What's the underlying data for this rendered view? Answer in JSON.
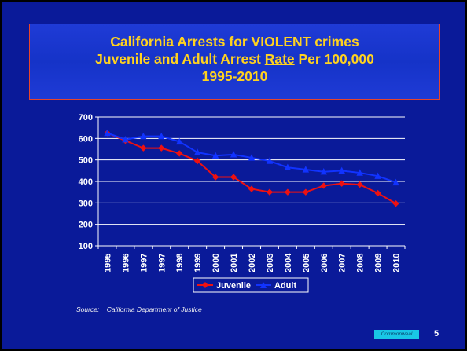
{
  "title": {
    "line1": "California Arrests for VIOLENT crimes",
    "line2_pre": "Juvenile and Adult Arrest ",
    "line2_ul": "Rate",
    "line2_post": " Per 100,000",
    "line3": "1995-2010"
  },
  "source_text": "Source:    California Department of Justice",
  "footer": {
    "tag": "Commonweal",
    "page_number": "5"
  },
  "colors": {
    "background": "#0a1a99",
    "title_text": "#ffd21f",
    "title_border": "#e8452a",
    "juvenile": "#ee1111",
    "adult": "#1133ff",
    "grid": "#ffffff",
    "plot_bg": "#ffffff"
  },
  "chart_data": {
    "type": "line",
    "title": "",
    "xlabel": "",
    "ylabel": "",
    "ylim": [
      100,
      700
    ],
    "yticks": [
      100,
      200,
      300,
      400,
      500,
      600,
      700
    ],
    "grid": true,
    "legend_position": "bottom",
    "categories": [
      "1995",
      "1996",
      "1997",
      "1997",
      "1998",
      "1999",
      "2000",
      "2001",
      "2002",
      "2003",
      "2004",
      "2005",
      "2006",
      "2007",
      "2008",
      "2009",
      "2010"
    ],
    "series": [
      {
        "name": "Juvenile",
        "marker": "diamond",
        "values": [
          625,
          590,
          555,
          555,
          530,
          495,
          420,
          420,
          365,
          350,
          350,
          350,
          380,
          390,
          385,
          345,
          297
        ]
      },
      {
        "name": "Adult",
        "marker": "triangle",
        "values": [
          625,
          595,
          610,
          610,
          585,
          535,
          520,
          525,
          510,
          495,
          465,
          455,
          445,
          450,
          440,
          425,
          395
        ]
      }
    ]
  }
}
